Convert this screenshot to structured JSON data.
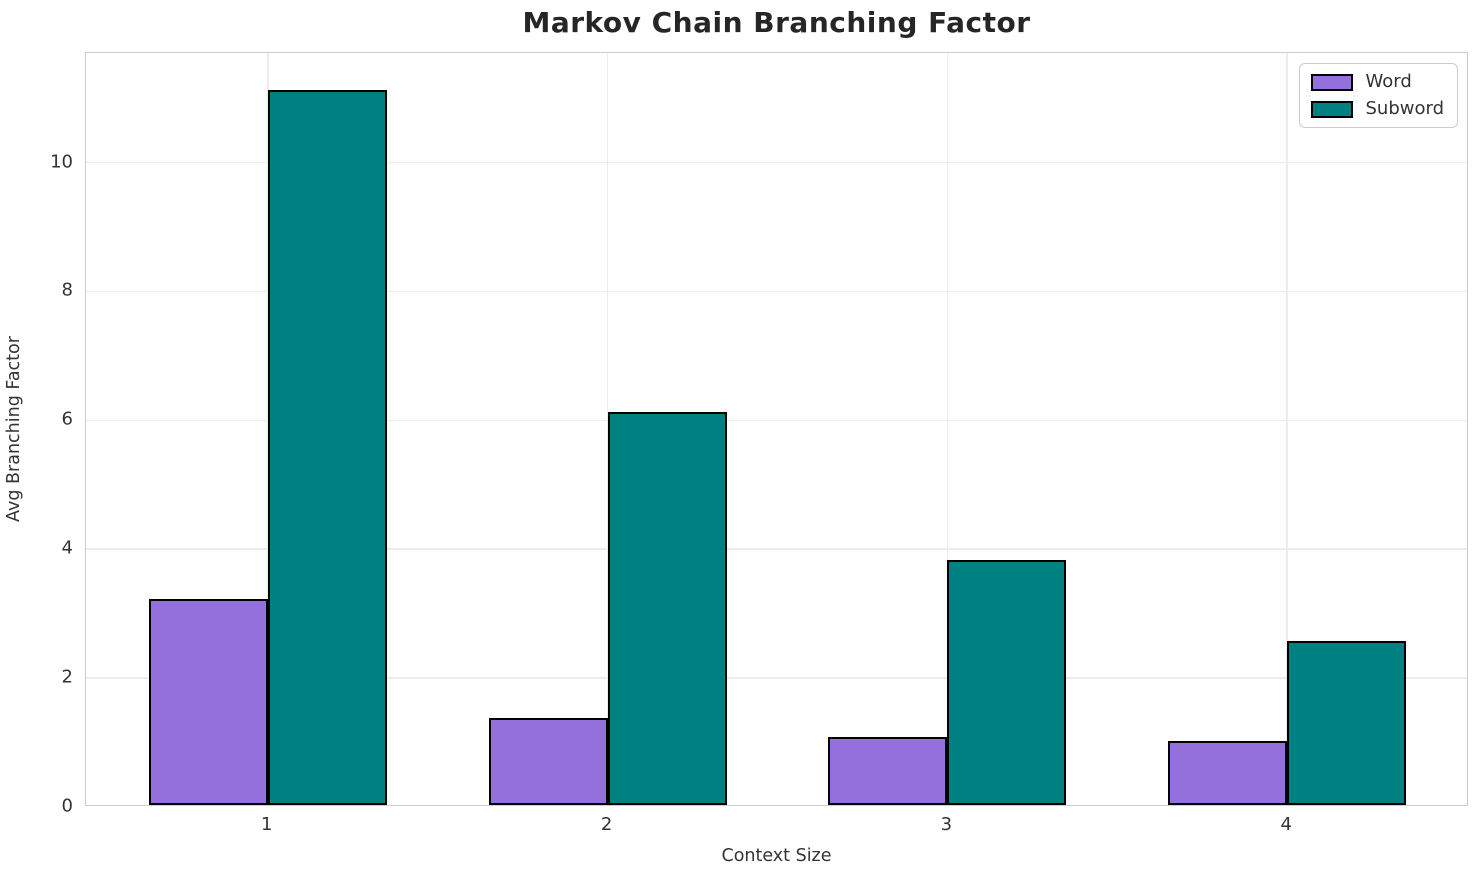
{
  "chart_data": {
    "type": "bar",
    "title": "Markov Chain Branching Factor",
    "xlabel": "Context Size",
    "ylabel": "Avg Branching Factor",
    "categories": [
      "1",
      "2",
      "3",
      "4"
    ],
    "series": [
      {
        "name": "Word",
        "color": "#9370DB",
        "values": [
          3.2,
          1.35,
          1.05,
          1.0
        ]
      },
      {
        "name": "Subword",
        "color": "#008080",
        "values": [
          11.1,
          6.1,
          3.8,
          2.55
        ]
      }
    ],
    "yticks": [
      0,
      2,
      4,
      6,
      8,
      10
    ],
    "ylim": [
      0,
      11.7
    ],
    "xlim": [
      -0.535,
      3.535
    ],
    "bar_width_units": 0.35,
    "grid": true,
    "legend_position": "upper right",
    "edge_color": "#000000",
    "grid_color": "#ececec",
    "spine_color": "#cccccc",
    "title_color": "#262626",
    "tick_color": "#333333"
  }
}
